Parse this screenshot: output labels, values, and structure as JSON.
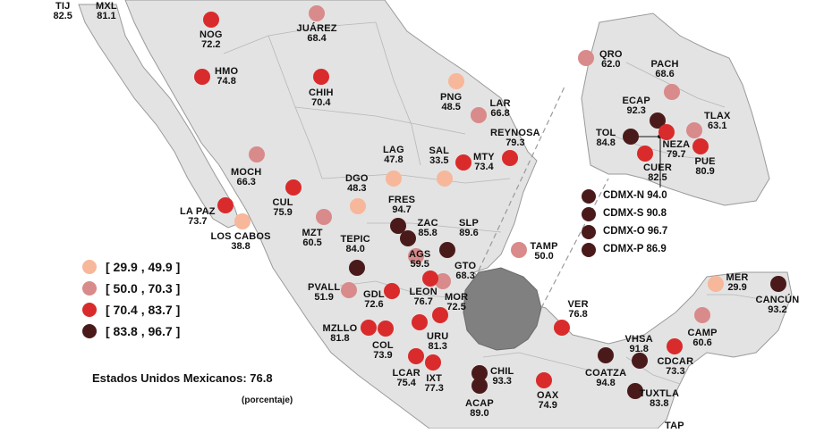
{
  "colors": {
    "range1": "#f7b79a",
    "range2": "#d98a8a",
    "range3": "#d92b2b",
    "range4": "#4a1a1a",
    "land": "#e3e3e3",
    "border": "#9a9a9a",
    "highlight_region": "#808080"
  },
  "legend": [
    {
      "label": "[ 29.9 , 49.9 ]",
      "color": "#f7b79a"
    },
    {
      "label": "[ 50.0 , 70.3 ]",
      "color": "#d98a8a"
    },
    {
      "label": "[ 70.4 , 83.7 ]",
      "color": "#d92b2b"
    },
    {
      "label": "[ 83.8 , 96.7 ]",
      "color": "#4a1a1a"
    }
  ],
  "national_total": "Estados Unidos Mexicanos: 76.8",
  "unit_note": "(porcentaje)",
  "cities": [
    {
      "id": "tij",
      "name": "TIJ",
      "value": "82.5",
      "cls": 3
    },
    {
      "id": "mxl",
      "name": "MXL",
      "value": "81.1",
      "cls": 3
    },
    {
      "id": "nog",
      "name": "NOG",
      "value": "72.2",
      "cls": 3
    },
    {
      "id": "juarez",
      "name": "JUÁREZ",
      "value": "68.4",
      "cls": 2
    },
    {
      "id": "hmo",
      "name": "HMO",
      "value": "74.8",
      "cls": 3
    },
    {
      "id": "chih",
      "name": "CHIH",
      "value": "70.4",
      "cls": 3
    },
    {
      "id": "png",
      "name": "PNG",
      "value": "48.5",
      "cls": 1
    },
    {
      "id": "lar",
      "name": "LAR",
      "value": "66.8",
      "cls": 2
    },
    {
      "id": "reynosa",
      "name": "REYNOSA",
      "value": "79.3",
      "cls": 3
    },
    {
      "id": "mty",
      "name": "MTY",
      "value": "73.4",
      "cls": 3
    },
    {
      "id": "sal",
      "name": "SAL",
      "value": "33.5",
      "cls": 1
    },
    {
      "id": "lag",
      "name": "LAG",
      "value": "47.8",
      "cls": 1
    },
    {
      "id": "moch",
      "name": "MOCH",
      "value": "66.3",
      "cls": 2
    },
    {
      "id": "dgo",
      "name": "DGO",
      "value": "48.3",
      "cls": 1
    },
    {
      "id": "cul",
      "name": "CUL",
      "value": "75.9",
      "cls": 3
    },
    {
      "id": "lapaz",
      "name": "LA PAZ",
      "value": "73.7",
      "cls": 3
    },
    {
      "id": "loscabos",
      "name": "LOS CABOS",
      "value": "38.8",
      "cls": 1
    },
    {
      "id": "mzt",
      "name": "MZT",
      "value": "60.5",
      "cls": 2
    },
    {
      "id": "fres",
      "name": "FRES",
      "value": "94.7",
      "cls": 4
    },
    {
      "id": "zac",
      "name": "ZAC",
      "value": "85.8",
      "cls": 4
    },
    {
      "id": "slp",
      "name": "SLP",
      "value": "89.6",
      "cls": 4
    },
    {
      "id": "tamp",
      "name": "TAMP",
      "value": "50.0",
      "cls": 2
    },
    {
      "id": "tepic",
      "name": "TEPIC",
      "value": "84.0",
      "cls": 4
    },
    {
      "id": "ags",
      "name": "AGS",
      "value": "59.5",
      "cls": 2
    },
    {
      "id": "gto",
      "name": "GTO",
      "value": "68.3",
      "cls": 2
    },
    {
      "id": "pvall",
      "name": "PVALL",
      "value": "51.9",
      "cls": 2
    },
    {
      "id": "gdl",
      "name": "GDL",
      "value": "72.6",
      "cls": 3
    },
    {
      "id": "leon",
      "name": "LEON",
      "value": "76.7",
      "cls": 3
    },
    {
      "id": "mor",
      "name": "MOR",
      "value": "72.5",
      "cls": 3
    },
    {
      "id": "mzllo",
      "name": "MZLLO",
      "value": "81.8",
      "cls": 3
    },
    {
      "id": "col",
      "name": "COL",
      "value": "73.9",
      "cls": 3
    },
    {
      "id": "uru",
      "name": "URU",
      "value": "81.3",
      "cls": 3
    },
    {
      "id": "lcar",
      "name": "LCAR",
      "value": "75.4",
      "cls": 3
    },
    {
      "id": "ixt",
      "name": "IXT",
      "value": "77.3",
      "cls": 3
    },
    {
      "id": "chil",
      "name": "CHIL",
      "value": "93.3",
      "cls": 4
    },
    {
      "id": "acap",
      "name": "ACAP",
      "value": "89.0",
      "cls": 4
    },
    {
      "id": "oax",
      "name": "OAX",
      "value": "74.9",
      "cls": 3
    },
    {
      "id": "ver",
      "name": "VER",
      "value": "76.8",
      "cls": 3
    },
    {
      "id": "coatza",
      "name": "COATZA",
      "value": "94.8",
      "cls": 4
    },
    {
      "id": "vhsa",
      "name": "VHSA",
      "value": "91.8",
      "cls": 4
    },
    {
      "id": "cdcar",
      "name": "CDCAR",
      "value": "73.3",
      "cls": 3
    },
    {
      "id": "tuxtla",
      "name": "TUXTLA",
      "value": "83.8",
      "cls": 4
    },
    {
      "id": "camp",
      "name": "CAMP",
      "value": "60.6",
      "cls": 2
    },
    {
      "id": "mer",
      "name": "MER",
      "value": "29.9",
      "cls": 1
    },
    {
      "id": "cancun",
      "name": "CANCÚN",
      "value": "93.2",
      "cls": 4
    },
    {
      "id": "tap",
      "name": "TAP",
      "value": "",
      "cls": 0
    },
    {
      "id": "qro",
      "name": "QRO",
      "value": "62.0",
      "cls": 2
    },
    {
      "id": "pach",
      "name": "PACH",
      "value": "68.6",
      "cls": 2
    },
    {
      "id": "ecap",
      "name": "ECAP",
      "value": "92.3",
      "cls": 4
    },
    {
      "id": "tlax",
      "name": "TLAX",
      "value": "63.1",
      "cls": 2
    },
    {
      "id": "tol",
      "name": "TOL",
      "value": "84.8",
      "cls": 4
    },
    {
      "id": "neza",
      "name": "NEZA",
      "value": "79.7",
      "cls": 3
    },
    {
      "id": "cuer",
      "name": "CUER",
      "value": "82.5",
      "cls": 3
    },
    {
      "id": "pue",
      "name": "PUE",
      "value": "80.9",
      "cls": 3
    }
  ],
  "cdmx": [
    {
      "label": "CDMX-N",
      "value": "94.0"
    },
    {
      "label": "CDMX-S",
      "value": "90.8"
    },
    {
      "label": "CDMX-O",
      "value": "96.7"
    },
    {
      "label": "CDMX-P",
      "value": "86.9"
    }
  ]
}
